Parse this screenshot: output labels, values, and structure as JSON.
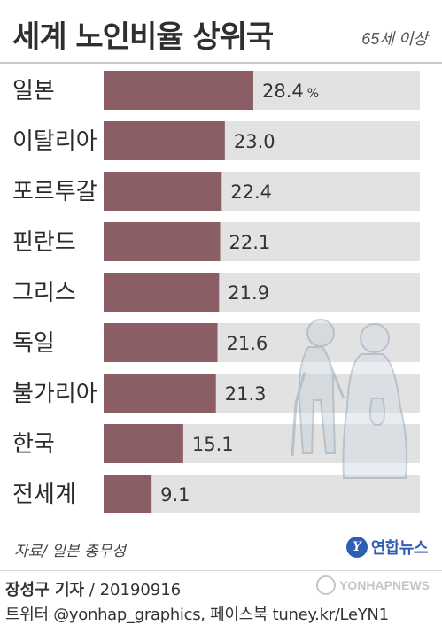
{
  "header": {
    "title": "세계 노인비율 상위국",
    "subtitle": "65세 이상"
  },
  "chart_data": {
    "type": "bar",
    "orientation": "horizontal",
    "title": "세계 노인비율 상위국",
    "subtitle": "65세 이상",
    "unit": "%",
    "categories": [
      "일본",
      "이탈리아",
      "포르투갈",
      "핀란드",
      "그리스",
      "독일",
      "불가리아",
      "한국",
      "전세계"
    ],
    "values": [
      28.4,
      23.0,
      22.4,
      22.1,
      21.9,
      21.6,
      21.3,
      15.1,
      9.1
    ],
    "value_labels": [
      "28.4",
      "23.0",
      "22.4",
      "22.1",
      "21.9",
      "21.6",
      "21.3",
      "15.1",
      "9.1"
    ],
    "first_label_unit": "%",
    "xlim": [
      0,
      60
    ],
    "grid": false,
    "legend": "none",
    "colors": {
      "bar": "#8b5e66",
      "track": "#e2e2e2"
    }
  },
  "footer": {
    "source": "자료/ 일본 총무성",
    "logo_text": "연합뉴스",
    "credit_name": "장성구 기자",
    "credit_sep": " / ",
    "credit_date": "20190916",
    "social": "트위터 @yonhap_graphics, 페이스북 tuney.kr/LeYN1",
    "watermark": "YONHAPNEWS"
  }
}
